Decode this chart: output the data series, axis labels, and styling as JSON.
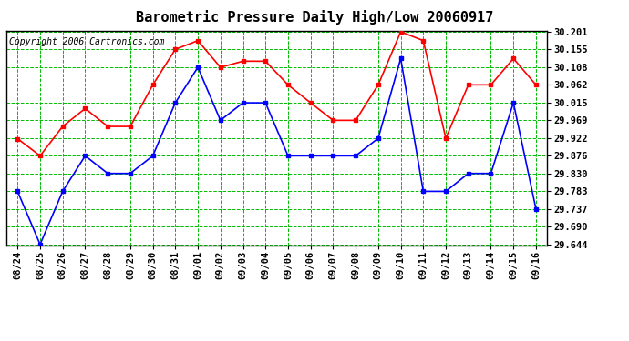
{
  "title": "Barometric Pressure Daily High/Low 20060917",
  "copyright": "Copyright 2006 Cartronics.com",
  "labels": [
    "08/24",
    "08/25",
    "08/26",
    "08/27",
    "08/28",
    "08/29",
    "08/30",
    "08/31",
    "09/01",
    "09/02",
    "09/03",
    "09/04",
    "09/05",
    "09/06",
    "09/07",
    "09/08",
    "09/09",
    "09/10",
    "09/11",
    "09/12",
    "09/13",
    "09/14",
    "09/15",
    "09/16"
  ],
  "high": [
    29.921,
    29.876,
    29.953,
    30.0,
    29.953,
    29.953,
    30.062,
    30.155,
    30.178,
    30.108,
    30.124,
    30.124,
    30.062,
    30.015,
    29.969,
    29.969,
    30.062,
    30.201,
    30.178,
    29.922,
    30.062,
    30.062,
    30.131,
    30.062
  ],
  "low": [
    29.783,
    29.644,
    29.783,
    29.876,
    29.83,
    29.83,
    29.876,
    30.015,
    30.108,
    29.969,
    30.015,
    30.015,
    29.876,
    29.876,
    29.876,
    29.876,
    29.922,
    30.131,
    29.783,
    29.783,
    29.83,
    29.83,
    30.015,
    29.737
  ],
  "ylim_min": 29.644,
  "ylim_max": 30.201,
  "yticks": [
    29.644,
    29.69,
    29.737,
    29.783,
    29.83,
    29.876,
    29.922,
    29.969,
    30.015,
    30.062,
    30.108,
    30.155,
    30.201
  ],
  "high_color": "#ff0000",
  "low_color": "#0000ff",
  "bg_color": "#ffffff",
  "grid_color": "#00bb00",
  "title_fontsize": 11,
  "copyright_fontsize": 7,
  "tick_fontsize": 7.5
}
